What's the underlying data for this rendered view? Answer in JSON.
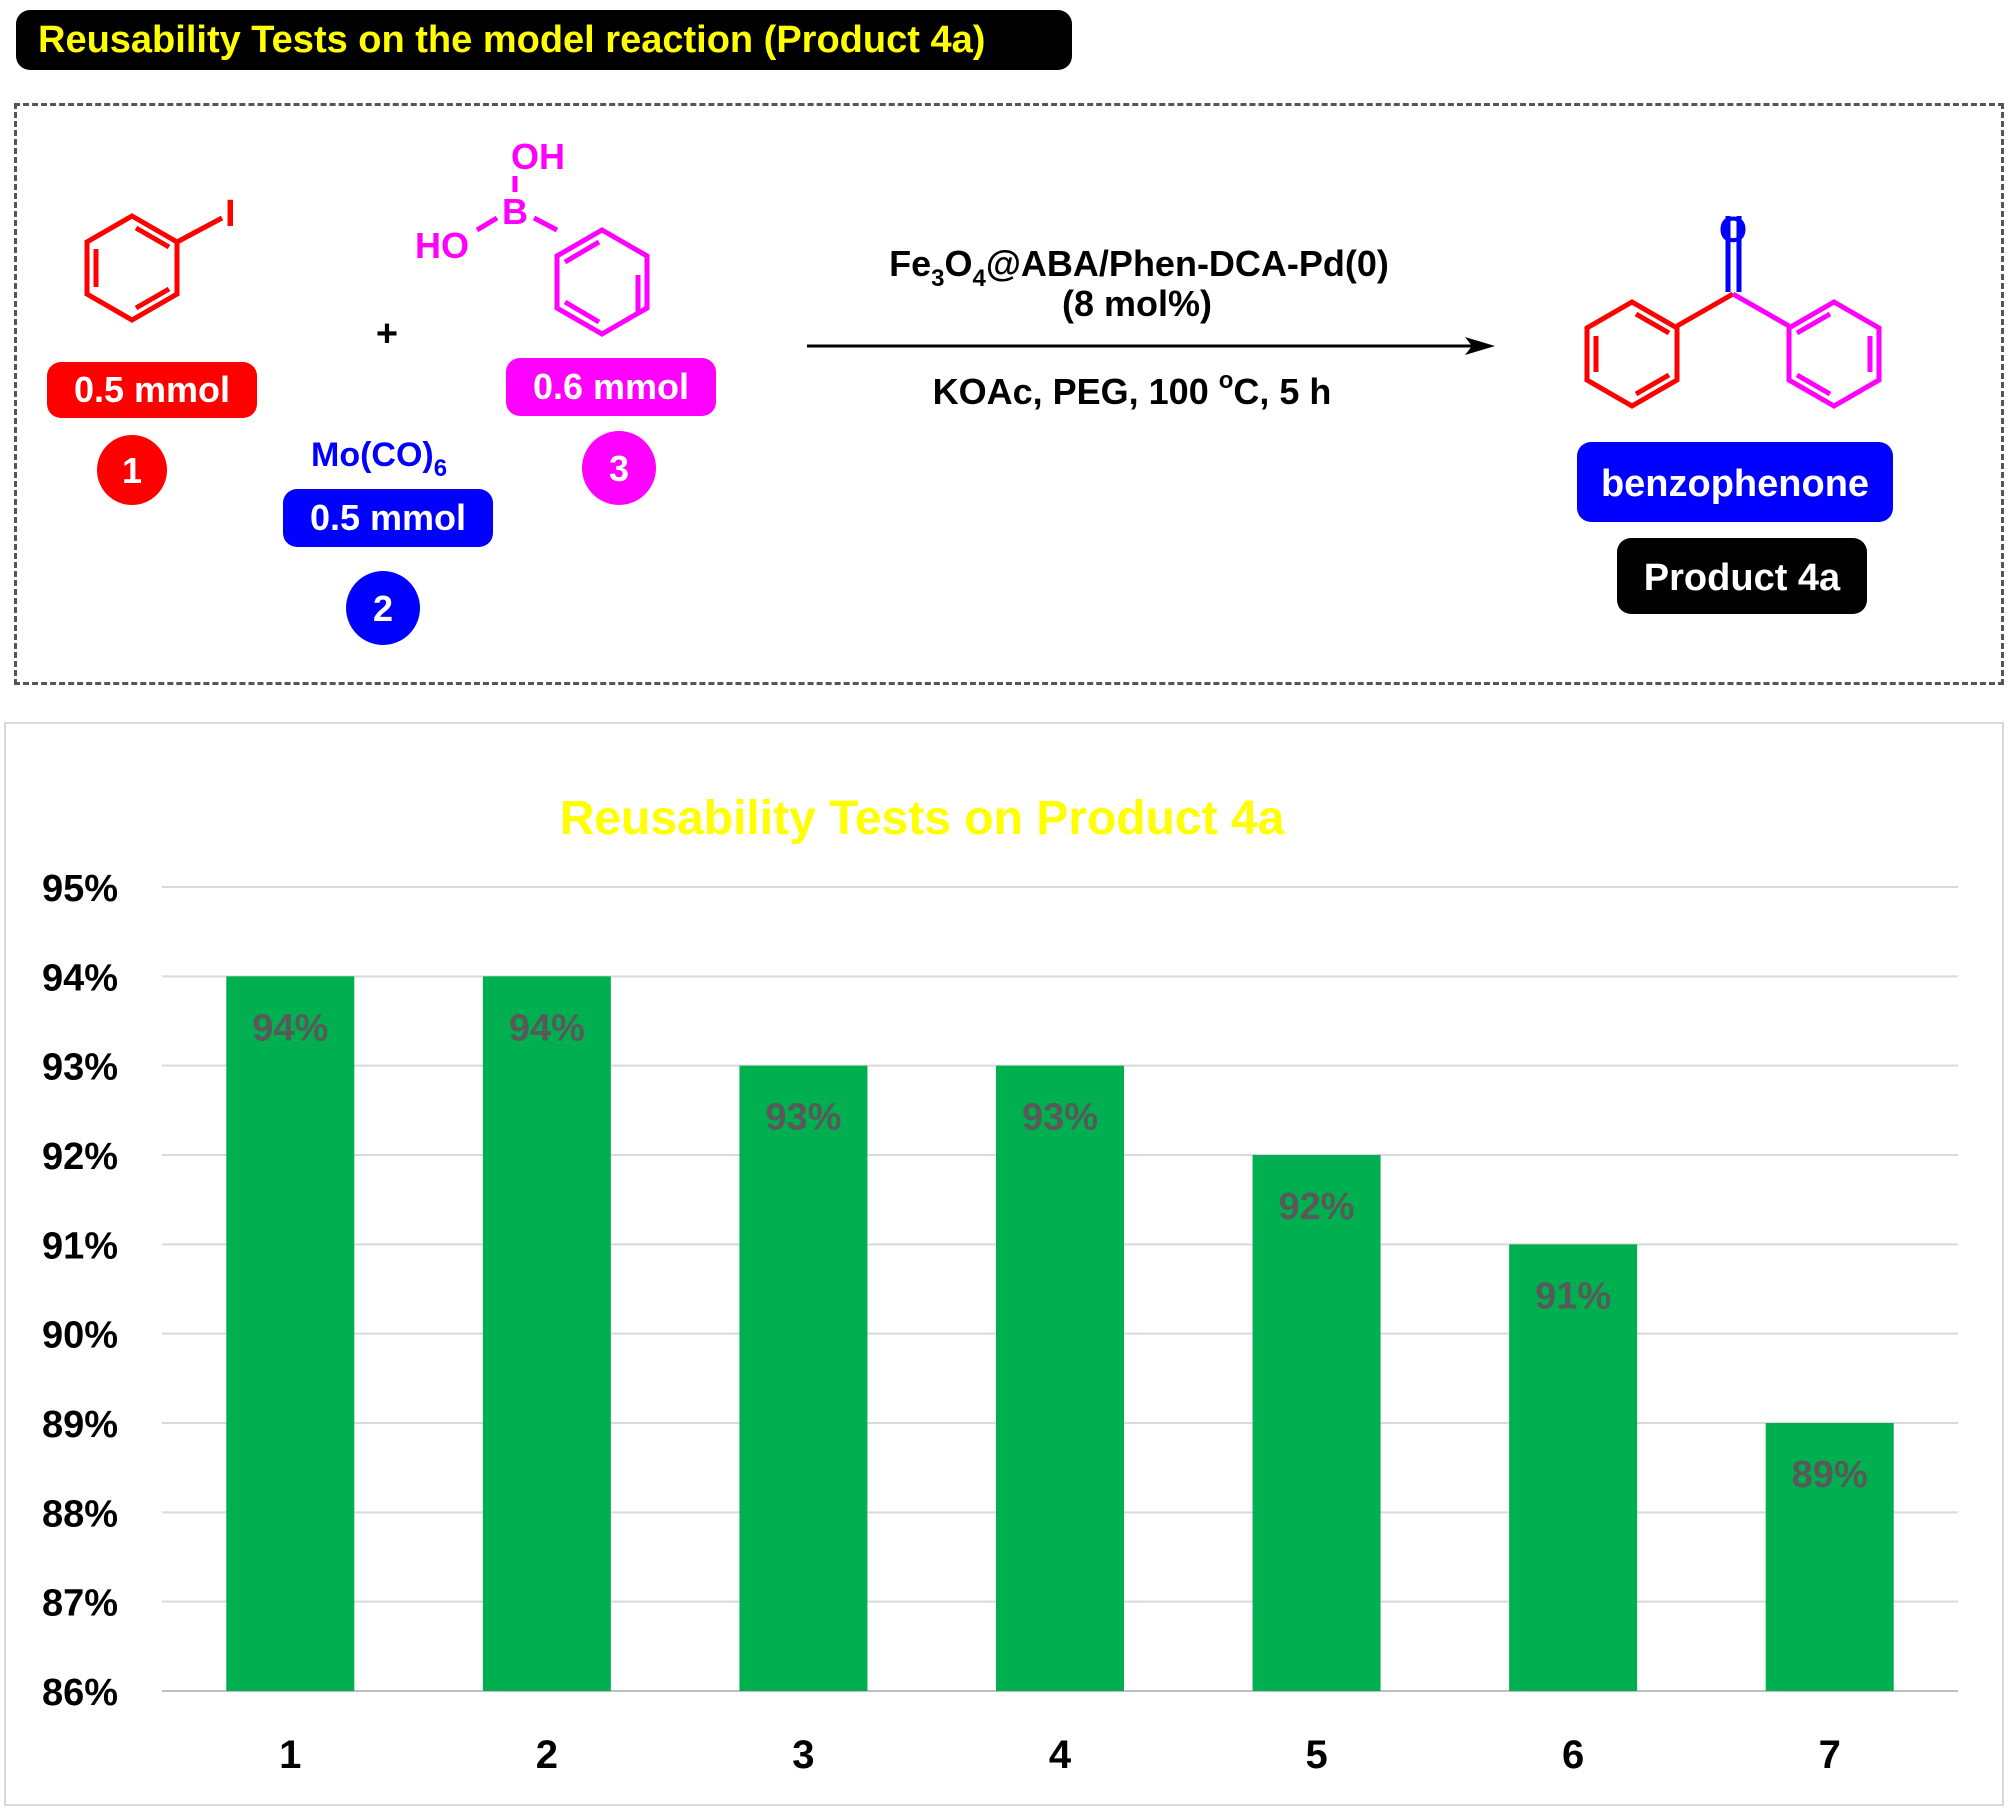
{
  "banner": {
    "title": "Reusability Tests on the model reaction (Product 4a)"
  },
  "scheme": {
    "reagent1": {
      "atom": "I",
      "amount": "0.5 mmol",
      "number": "1",
      "color": "#ff0000"
    },
    "plus": "+",
    "reagent2": {
      "formula": "Mo(CO)",
      "subscript": "6",
      "amount": "0.5 mmol",
      "number": "2",
      "color": "#0000ff"
    },
    "reagent3": {
      "oh_top": "OH",
      "boron": "B",
      "ho_left": "HO",
      "amount": "0.6 mmol",
      "number": "3",
      "color": "#ff00ff"
    },
    "catalyst": {
      "fe": "Fe",
      "sub3": "3",
      "o": "O",
      "sub4": "4",
      "rest": "@ABA/Phen-DCA-Pd(0)",
      "loading": "(8 mol%)"
    },
    "conditions": {
      "part1": "KOAc, PEG, 100 ",
      "deg": "o",
      "part2": "C, 5 h"
    },
    "product": {
      "oxygen": "O",
      "name": "benzophenone",
      "label": "Product 4a",
      "name_color": "#0000ff"
    }
  },
  "chart_data": {
    "type": "bar",
    "title": "Reusability Tests on Product 4a",
    "title_color": "#ffff00",
    "bar_color": "#00b050",
    "label_color": "#595959",
    "categories": [
      "1",
      "2",
      "3",
      "4",
      "5",
      "6",
      "7"
    ],
    "values": [
      94,
      94,
      93,
      93,
      92,
      91,
      89
    ],
    "data_labels": [
      "94%",
      "94%",
      "93%",
      "93%",
      "92%",
      "91%",
      "89%"
    ],
    "ylim": [
      86,
      95
    ],
    "yticks": [
      "86%",
      "87%",
      "88%",
      "89%",
      "90%",
      "91%",
      "92%",
      "93%",
      "94%",
      "95%"
    ],
    "grid": true,
    "legend": "none"
  }
}
